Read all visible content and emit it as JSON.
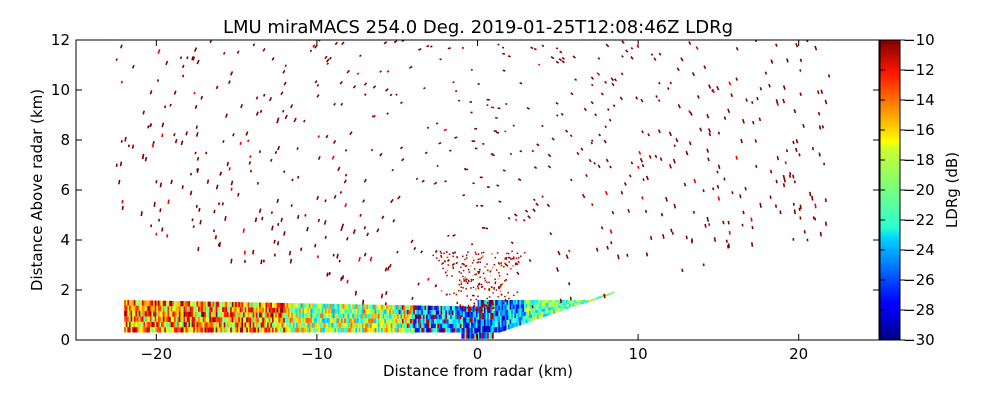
{
  "chart_data": {
    "type": "heatmap",
    "title": "LMU miraMACS 254.0 Deg. 2019-01-25T12:08:46Z  LDRg",
    "xlabel": "Distance from radar (km)",
    "ylabel": "Distance Above radar  (km)",
    "xlim": [
      -25,
      25
    ],
    "ylim": [
      0,
      12
    ],
    "xticks": [
      -20,
      -10,
      0,
      10,
      20
    ],
    "yticks": [
      0,
      2,
      4,
      6,
      8,
      10,
      12
    ],
    "colorbar": {
      "label": "LDRg (dB)",
      "range": [
        -30,
        -10
      ],
      "ticks": [
        -10,
        -12,
        -14,
        -16,
        -18,
        -20,
        -22,
        -24,
        -26,
        -28,
        -30
      ],
      "colormap": "jet"
    },
    "grid": false,
    "features": {
      "low_layer_height_km": [
        0.3,
        1.6
      ],
      "low_layer_x_km": [
        -22,
        8.5
      ],
      "scan_elevation_edge_deg": 10.2,
      "sparse_echo_max_range_km": 22
    }
  }
}
